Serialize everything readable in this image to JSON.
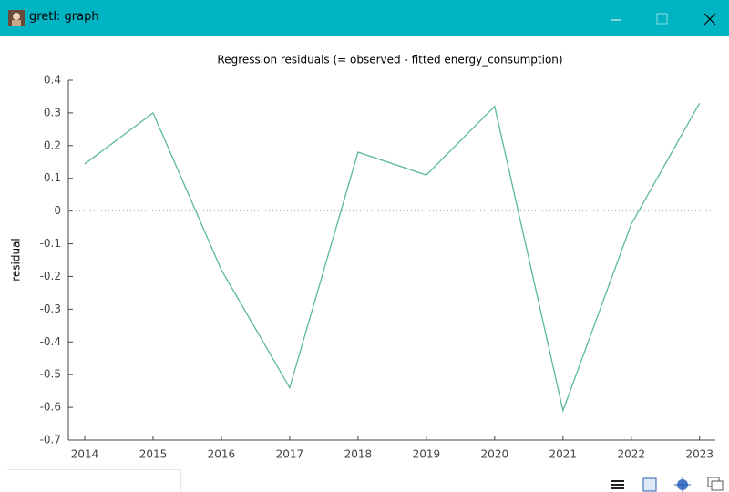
{
  "window_title": "gretl: graph",
  "chart_data": {
    "type": "line",
    "title": "Regression residuals (= observed - fitted energy_consumption)",
    "ylabel": "residual",
    "x": [
      2014,
      2015,
      2016,
      2017,
      2018,
      2019,
      2020,
      2021,
      2022,
      2023
    ],
    "series": [
      {
        "name": "residual",
        "color": "#5bb99a",
        "values": [
          0.144,
          0.3,
          -0.18,
          -0.54,
          0.18,
          0.11,
          0.32,
          -0.61,
          -0.04,
          0.33
        ]
      }
    ],
    "xlim": [
      2013.76,
      2023.23
    ],
    "xticks": [
      2014,
      2015,
      2016,
      2017,
      2018,
      2019,
      2020,
      2021,
      2022,
      2023
    ],
    "ylim": [
      -0.7,
      0.4
    ],
    "yticks": [
      0.4,
      0.3,
      0.2,
      0.1,
      0,
      -0.1,
      -0.2,
      -0.3,
      -0.4,
      -0.5,
      -0.6,
      -0.7
    ],
    "zero_line": true
  }
}
